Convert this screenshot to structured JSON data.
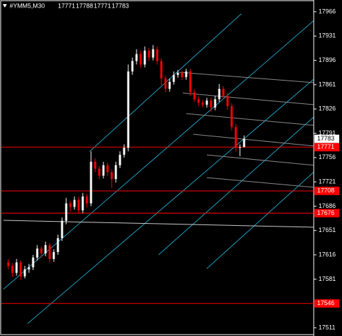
{
  "chart_data": {
    "type": "candlestick",
    "symbol": "#YMM5,M30",
    "ylim": [
      17511,
      17966
    ],
    "yticks": [
      17966,
      17931,
      17896,
      17861,
      17826,
      17791,
      17756,
      17721,
      17686,
      17651,
      17616,
      17581,
      17511
    ],
    "up_color": "#ffffff",
    "down_color": "#ff0000",
    "current_price": 17783,
    "levels": [
      17771,
      17708,
      17676,
      17546
    ],
    "level_color": "#ff0000",
    "ohlc": [
      [
        17605,
        17610,
        17595,
        17600
      ],
      [
        17600,
        17604,
        17584,
        17590
      ],
      [
        17590,
        17610,
        17586,
        17605
      ],
      [
        17605,
        17608,
        17580,
        17585
      ],
      [
        17585,
        17600,
        17582,
        17595
      ],
      [
        17595,
        17603,
        17590,
        17598
      ],
      [
        17598,
        17616,
        17594,
        17612
      ],
      [
        17612,
        17630,
        17608,
        17625
      ],
      [
        17625,
        17628,
        17612,
        17618
      ],
      [
        17618,
        17635,
        17614,
        17630
      ],
      [
        17630,
        17633,
        17605,
        17610
      ],
      [
        17610,
        17624,
        17606,
        17620
      ],
      [
        17620,
        17645,
        17616,
        17640
      ],
      [
        17640,
        17670,
        17636,
        17665
      ],
      [
        17665,
        17698,
        17660,
        17690
      ],
      [
        17690,
        17694,
        17678,
        17685
      ],
      [
        17685,
        17700,
        17681,
        17695
      ],
      [
        17695,
        17699,
        17675,
        17680
      ],
      [
        17680,
        17705,
        17676,
        17700
      ],
      [
        17700,
        17704,
        17684,
        17690
      ],
      [
        17690,
        17765,
        17686,
        17750
      ],
      [
        17750,
        17755,
        17735,
        17740
      ],
      [
        17740,
        17744,
        17725,
        17730
      ],
      [
        17730,
        17750,
        17726,
        17745
      ],
      [
        17745,
        17749,
        17730,
        17735
      ],
      [
        17735,
        17739,
        17712,
        17725
      ],
      [
        17725,
        17750,
        17720,
        17745
      ],
      [
        17745,
        17765,
        17741,
        17760
      ],
      [
        17760,
        17775,
        17756,
        17770
      ],
      [
        17770,
        17890,
        17765,
        17880
      ],
      [
        17880,
        17900,
        17875,
        17895
      ],
      [
        17895,
        17912,
        17890,
        17905
      ],
      [
        17905,
        17910,
        17885,
        17890
      ],
      [
        17890,
        17916,
        17886,
        17910
      ],
      [
        17910,
        17914,
        17895,
        17900
      ],
      [
        17900,
        17918,
        17896,
        17912
      ],
      [
        17912,
        17916,
        17890,
        17895
      ],
      [
        17895,
        17899,
        17860,
        17870
      ],
      [
        17870,
        17874,
        17850,
        17855
      ],
      [
        17855,
        17870,
        17851,
        17865
      ],
      [
        17865,
        17880,
        17861,
        17875
      ],
      [
        17875,
        17882,
        17871,
        17878
      ],
      [
        17878,
        17881,
        17868,
        17872
      ],
      [
        17872,
        17884,
        17868,
        17880
      ],
      [
        17880,
        17884,
        17845,
        17850
      ],
      [
        17850,
        17854,
        17836,
        17840
      ],
      [
        17840,
        17844,
        17830,
        17835
      ],
      [
        17835,
        17839,
        17828,
        17832
      ],
      [
        17832,
        17842,
        17828,
        17838
      ],
      [
        17838,
        17842,
        17822,
        17828
      ],
      [
        17828,
        17845,
        17824,
        17840
      ],
      [
        17840,
        17862,
        17836,
        17855
      ],
      [
        17855,
        17859,
        17840,
        17845
      ],
      [
        17845,
        17849,
        17825,
        17830
      ],
      [
        17830,
        17834,
        17795,
        17800
      ],
      [
        17800,
        17804,
        17765,
        17770
      ],
      [
        17770,
        17775,
        17758,
        17771
      ],
      [
        17771,
        17788,
        17771,
        17783
      ]
    ]
  }
}
